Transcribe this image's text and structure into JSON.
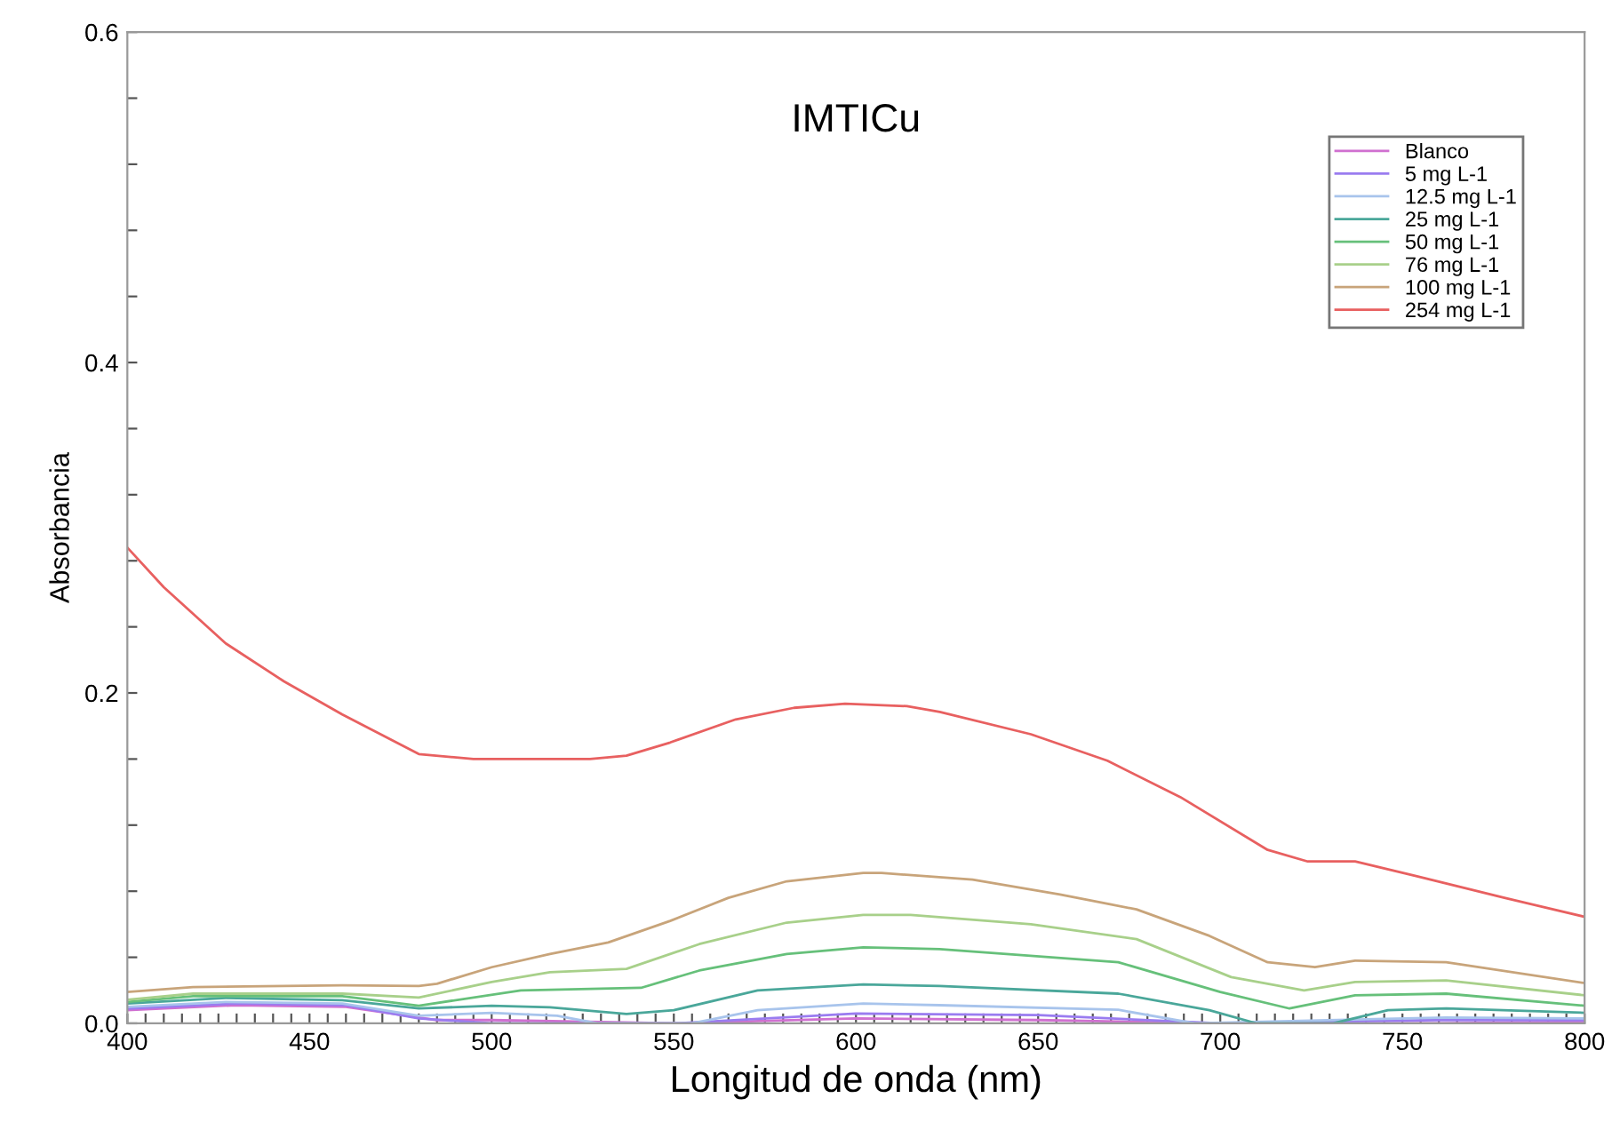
{
  "chart_data": {
    "type": "line",
    "title": "IMTICu",
    "xlabel": "Longitud de onda (nm)",
    "ylabel": "Absorbancia",
    "xlim": [
      400,
      800
    ],
    "ylim": [
      0,
      0.6
    ],
    "xticks": [
      400,
      {
        "value": 405,
        "label": null
      },
      {
        "value": 410,
        "label": null
      },
      {
        "value": 415,
        "label": null
      },
      {
        "value": 420,
        "label": null
      },
      {
        "value": 425,
        "label": null
      },
      {
        "value": 430,
        "label": null
      },
      {
        "value": 435,
        "label": null
      },
      {
        "value": 440,
        "label": null
      },
      {
        "value": 445,
        "label": null
      },
      450,
      {
        "value": 455,
        "label": null
      },
      {
        "value": 460,
        "label": null
      },
      {
        "value": 465,
        "label": null
      },
      {
        "value": 470,
        "label": null
      },
      {
        "value": 475,
        "label": null
      },
      {
        "value": 480,
        "label": null
      },
      {
        "value": 485,
        "label": null
      },
      {
        "value": 490,
        "label": null
      },
      {
        "value": 495,
        "label": null
      },
      500,
      {
        "value": 505,
        "label": null
      },
      {
        "value": 510,
        "label": null
      },
      {
        "value": 515,
        "label": null
      },
      {
        "value": 520,
        "label": null
      },
      {
        "value": 525,
        "label": null
      },
      {
        "value": 530,
        "label": null
      },
      {
        "value": 535,
        "label": null
      },
      {
        "value": 540,
        "label": null
      },
      {
        "value": 545,
        "label": null
      },
      550,
      {
        "value": 555,
        "label": null
      },
      {
        "value": 560,
        "label": null
      },
      {
        "value": 565,
        "label": null
      },
      {
        "value": 570,
        "label": null
      },
      {
        "value": 575,
        "label": null
      },
      {
        "value": 580,
        "label": null
      },
      {
        "value": 585,
        "label": null
      },
      {
        "value": 590,
        "label": null
      },
      {
        "value": 595,
        "label": null
      },
      600,
      {
        "value": 605,
        "label": null
      },
      {
        "value": 610,
        "label": null
      },
      {
        "value": 615,
        "label": null
      },
      {
        "value": 620,
        "label": null
      },
      {
        "value": 625,
        "label": null
      },
      {
        "value": 630,
        "label": null
      },
      {
        "value": 635,
        "label": null
      },
      {
        "value": 640,
        "label": null
      },
      {
        "value": 645,
        "label": null
      },
      650,
      {
        "value": 655,
        "label": null
      },
      {
        "value": 660,
        "label": null
      },
      {
        "value": 665,
        "label": null
      },
      {
        "value": 670,
        "label": null
      },
      {
        "value": 675,
        "label": null
      },
      {
        "value": 680,
        "label": null
      },
      {
        "value": 685,
        "label": null
      },
      {
        "value": 690,
        "label": null
      },
      {
        "value": 695,
        "label": null
      },
      700,
      {
        "value": 705,
        "label": null
      },
      {
        "value": 710,
        "label": null
      },
      {
        "value": 715,
        "label": null
      },
      {
        "value": 720,
        "label": null
      },
      {
        "value": 725,
        "label": null
      },
      {
        "value": 730,
        "label": null
      },
      {
        "value": 735,
        "label": null
      },
      {
        "value": 740,
        "label": null
      },
      {
        "value": 745,
        "label": null
      },
      750,
      {
        "value": 755,
        "label": null
      },
      {
        "value": 760,
        "label": null
      },
      {
        "value": 765,
        "label": null
      },
      {
        "value": 770,
        "label": null
      },
      {
        "value": 775,
        "label": null
      },
      {
        "value": 780,
        "label": null
      },
      {
        "value": 785,
        "label": null
      },
      {
        "value": 790,
        "label": null
      },
      {
        "value": 795,
        "label": null
      },
      800
    ],
    "yticks": [
      {
        "value": 0,
        "label": "0.0"
      },
      {
        "value": 0.04,
        "label": null
      },
      {
        "value": 0.08,
        "label": null
      },
      {
        "value": 0.12,
        "label": null
      },
      {
        "value": 0.16,
        "label": null
      },
      0.2,
      {
        "value": 0.24,
        "label": null
      },
      {
        "value": 0.28,
        "label": null
      },
      {
        "value": 0.32,
        "label": null
      },
      {
        "value": 0.36,
        "label": null
      },
      0.4,
      {
        "value": 0.44,
        "label": null
      },
      {
        "value": 0.48,
        "label": null
      },
      {
        "value": 0.52,
        "label": null
      },
      {
        "value": 0.56,
        "label": null
      },
      0.6
    ],
    "grid": false,
    "legend": "top right",
    "marker": "none",
    "line_style": "solid",
    "series": [
      {
        "name": "Blanco",
        "color": "#d070d0",
        "x": [
          400,
          430,
          460,
          485,
          500,
          550,
          600,
          650,
          700,
          760,
          800
        ],
        "values": [
          0.008,
          0.011,
          0.01,
          0.002,
          0.002,
          0.0,
          0.003,
          0.002,
          0.0,
          0.0,
          0.001
        ]
      },
      {
        "name": "5 mg L-1",
        "color": "#9a7cf0",
        "x": [
          400,
          430,
          460,
          480,
          500,
          550,
          600,
          650,
          700,
          760,
          800
        ],
        "values": [
          0.009,
          0.012,
          0.011,
          0.003,
          0.0,
          0.0,
          0.006,
          0.005,
          0.0,
          0.002,
          0.002
        ]
      },
      {
        "name": "12.5 mg L-1",
        "color": "#a8c4ec",
        "x": [
          400,
          427,
          459,
          480,
          500,
          518,
          529,
          555,
          573,
          602,
          623,
          672,
          693,
          762,
          800
        ],
        "values": [
          0.01,
          0.013,
          0.012,
          0.0046,
          0.0064,
          0.0046,
          0.0,
          0.0,
          0.008,
          0.012,
          0.011,
          0.0082,
          0.0,
          0.0036,
          0.003
        ]
      },
      {
        "name": "25 mg L-1",
        "color": "#4aa79a",
        "x": [
          400,
          427,
          459,
          480,
          500,
          516,
          537,
          550,
          573,
          602,
          623,
          672,
          697,
          710,
          731,
          746,
          762,
          800
        ],
        "values": [
          0.012,
          0.0154,
          0.014,
          0.009,
          0.0107,
          0.0097,
          0.0057,
          0.008,
          0.02,
          0.0236,
          0.0226,
          0.018,
          0.008,
          0.0,
          0.0,
          0.008,
          0.009,
          0.0064
        ]
      },
      {
        "name": "50 mg L-1",
        "color": "#66c07a",
        "x": [
          400,
          418,
          459,
          480,
          508,
          541,
          557,
          581,
          602,
          623,
          672,
          700,
          719,
          737,
          762,
          800
        ],
        "values": [
          0.013,
          0.0165,
          0.0165,
          0.0107,
          0.02,
          0.0215,
          0.032,
          0.042,
          0.046,
          0.045,
          0.037,
          0.019,
          0.009,
          0.017,
          0.018,
          0.0107
        ]
      },
      {
        "name": "76 mg L-1",
        "color": "#a8d08a",
        "x": [
          400,
          418,
          459,
          480,
          500,
          516,
          537,
          557,
          581,
          602,
          615,
          648,
          677,
          703,
          723,
          737,
          762,
          800
        ],
        "values": [
          0.0143,
          0.018,
          0.018,
          0.0157,
          0.025,
          0.031,
          0.033,
          0.048,
          0.061,
          0.0656,
          0.0656,
          0.06,
          0.051,
          0.028,
          0.02,
          0.025,
          0.026,
          0.017
        ]
      },
      {
        "name": "100 mg L-1",
        "color": "#c8a47a",
        "x": [
          400,
          418,
          459,
          480,
          485,
          500,
          516,
          532,
          549,
          565,
          581,
          602,
          607,
          632,
          656,
          677,
          697,
          713,
          726,
          737,
          762,
          800
        ],
        "values": [
          0.019,
          0.022,
          0.023,
          0.0226,
          0.024,
          0.034,
          0.042,
          0.049,
          0.062,
          0.076,
          0.086,
          0.091,
          0.091,
          0.087,
          0.078,
          0.069,
          0.053,
          0.037,
          0.034,
          0.038,
          0.037,
          0.0244
        ]
      },
      {
        "name": "254 mg L-1",
        "color": "#e86060",
        "x": [
          400,
          410,
          427,
          443,
          459,
          480,
          495,
          527,
          537,
          549,
          567,
          583,
          597,
          614,
          623,
          648,
          669,
          689,
          713,
          724,
          737,
          754,
          778,
          800
        ],
        "values": [
          0.288,
          0.264,
          0.23,
          0.207,
          0.187,
          0.163,
          0.16,
          0.16,
          0.162,
          0.17,
          0.184,
          0.191,
          0.1935,
          0.192,
          0.1885,
          0.175,
          0.159,
          0.137,
          0.105,
          0.098,
          0.098,
          0.089,
          0.076,
          0.0645
        ]
      }
    ]
  }
}
